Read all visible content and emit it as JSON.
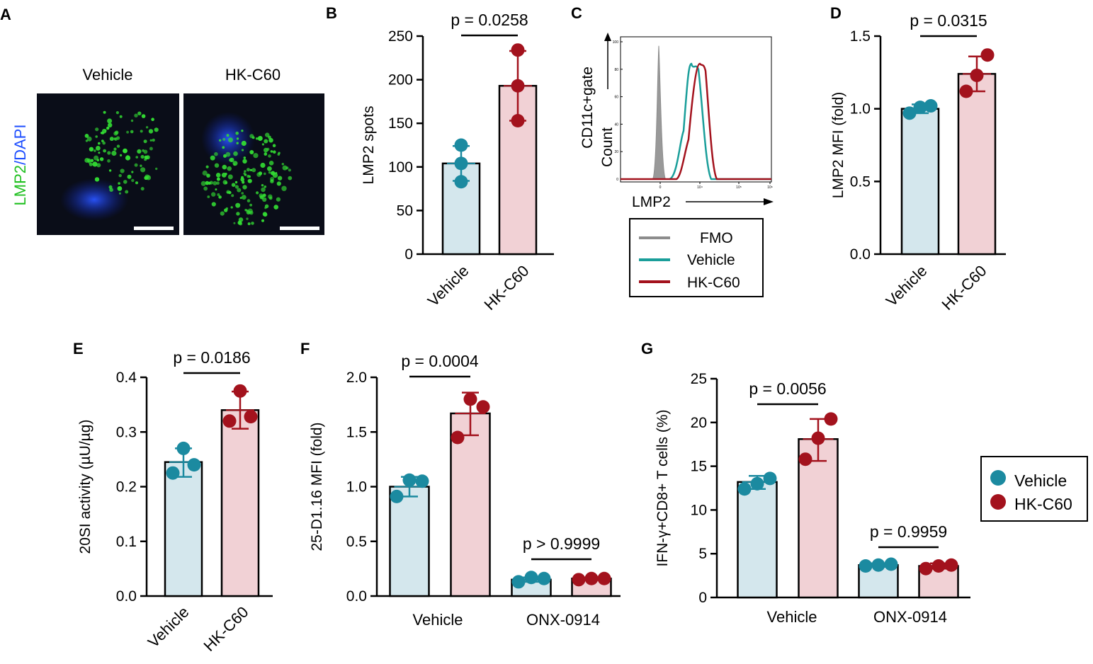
{
  "colors": {
    "vehicle_bar": "#d4e7ed",
    "hkc60_bar": "#f1d1d5",
    "vehicle_point": "#1b8aa0",
    "hkc60_point": "#a3121d",
    "fmo_line": "#8c8c8c",
    "vehicle_line": "#1a9e9a",
    "hkc60_line": "#a3121d",
    "green": "#20c020",
    "blue": "#2050ff"
  },
  "panel_letters": {
    "A": "A",
    "B": "B",
    "C": "C",
    "D": "D",
    "E": "E",
    "F": "F",
    "G": "G"
  },
  "panel_a": {
    "vehicle_label": "Vehicle",
    "hkc60_label": "HK-C60",
    "ylabel_lmp2": "LMP2",
    "ylabel_slash": "/",
    "ylabel_dapi": "DAPI"
  },
  "panel_c": {
    "ylabel_line1": "CD11c+gate",
    "ylabel_line2": "Count",
    "xlabel": "LMP2",
    "yticks": [
      "0",
      "20",
      "40",
      "60",
      "80",
      "100"
    ],
    "xticks": [
      "0",
      "10⁴",
      "10⁵",
      "10⁶"
    ],
    "legend": [
      "FMO",
      "Vehicle",
      "HK-C60"
    ]
  },
  "legend_g": [
    "Vehicle",
    "HK-C60"
  ],
  "chart_data": [
    {
      "panel": "B",
      "type": "bar",
      "categories": [
        "Vehicle",
        "HK-C60"
      ],
      "values": [
        104,
        193
      ],
      "error": [
        [
          84,
          124
        ],
        [
          153,
          233
        ]
      ],
      "points": [
        [
          83,
          104,
          125
        ],
        [
          153,
          193,
          234
        ]
      ],
      "ylabel": "LMP2 spots",
      "xlabel": "",
      "ylim": [
        0,
        250
      ],
      "yticks": [
        "0",
        "50",
        "100",
        "150",
        "200",
        "250"
      ],
      "annotations": [
        {
          "text": "p = 0.0258",
          "between": [
            0,
            1
          ]
        }
      ]
    },
    {
      "panel": "C",
      "type": "line",
      "title": "",
      "xlabel": "LMP2",
      "ylabel": "CD11c+gate Count",
      "ylim": [
        0,
        100
      ],
      "series": [
        {
          "name": "FMO",
          "peak": 97
        },
        {
          "name": "Vehicle",
          "peak": 84
        },
        {
          "name": "HK-C60",
          "peak": 84
        }
      ]
    },
    {
      "panel": "D",
      "type": "bar",
      "categories": [
        "Vehicle",
        "HK-C60"
      ],
      "values": [
        1.0,
        1.24
      ],
      "error": [
        [
          0.97,
          1.03
        ],
        [
          1.12,
          1.36
        ]
      ],
      "points": [
        [
          0.97,
          1.01,
          1.02
        ],
        [
          1.12,
          1.23,
          1.37
        ]
      ],
      "ylabel": "LMP2 MFI (fold)",
      "ylim": [
        0,
        1.5
      ],
      "yticks": [
        "0.0",
        "0.5",
        "1.0",
        "1.5"
      ],
      "annotations": [
        {
          "text": "p = 0.0315",
          "between": [
            0,
            1
          ]
        }
      ]
    },
    {
      "panel": "E",
      "type": "bar",
      "categories": [
        "Vehicle",
        "HK-C60"
      ],
      "values": [
        0.245,
        0.34
      ],
      "error": [
        [
          0.218,
          0.27
        ],
        [
          0.306,
          0.374
        ]
      ],
      "points": [
        [
          0.225,
          0.24,
          0.27
        ],
        [
          0.32,
          0.328,
          0.375
        ]
      ],
      "ylabel": "20SI activity (µU/µg)",
      "ylim": [
        0,
        0.4
      ],
      "yticks": [
        "0.0",
        "0.1",
        "0.2",
        "0.3",
        "0.4"
      ],
      "annotations": [
        {
          "text": "p = 0.0186",
          "between": [
            0,
            1
          ]
        }
      ]
    },
    {
      "panel": "F",
      "type": "bar",
      "groups": [
        "Vehicle",
        "ONX-0914"
      ],
      "series": [
        {
          "name": "Vehicle",
          "values": [
            1.0,
            0.15
          ],
          "error": [
            [
              0.91,
              1.09
            ],
            [
              0.13,
              0.17
            ]
          ],
          "points": [
            [
              0.91,
              1.05,
              1.06
            ],
            [
              0.13,
              0.16,
              0.17
            ]
          ]
        },
        {
          "name": "HK-C60",
          "values": [
            1.67,
            0.16
          ],
          "error": [
            [
              1.47,
              1.86
            ],
            [
              0.15,
              0.17
            ]
          ],
          "points": [
            [
              1.45,
              1.73,
              1.8
            ],
            [
              0.15,
              0.16,
              0.16
            ]
          ]
        }
      ],
      "ylabel": "25-D1.16 MFI (fold)",
      "ylim": [
        0,
        2.0
      ],
      "yticks": [
        "0.0",
        "0.5",
        "1.0",
        "1.5",
        "2.0"
      ],
      "annotations": [
        {
          "text": "p = 0.0004",
          "group": 0
        },
        {
          "text": "p > 0.9999",
          "group": 1
        }
      ]
    },
    {
      "panel": "G",
      "type": "bar",
      "groups": [
        "Vehicle",
        "ONX-0914"
      ],
      "series": [
        {
          "name": "Vehicle",
          "values": [
            13.2,
            3.7
          ],
          "error": [
            [
              12.4,
              13.9
            ],
            [
              3.5,
              3.9
            ]
          ],
          "points": [
            [
              12.4,
              13.0,
              13.6
            ],
            [
              3.6,
              3.7,
              3.8
            ]
          ],
          "legend": "Vehicle"
        },
        {
          "name": "HK-C60",
          "values": [
            18.1,
            3.6
          ],
          "error": [
            [
              15.6,
              20.4
            ],
            [
              3.3,
              3.9
            ]
          ],
          "points": [
            [
              15.8,
              18.2,
              20.4
            ],
            [
              3.3,
              3.6,
              3.7
            ]
          ],
          "legend": "HK-C60"
        }
      ],
      "ylabel": "IFN-γ+CD8+ T cells (%)",
      "ylim": [
        0,
        25
      ],
      "yticks": [
        "0",
        "5",
        "10",
        "15",
        "20",
        "25"
      ],
      "annotations": [
        {
          "text": "p = 0.0056",
          "group": 0
        },
        {
          "text": "p = 0.9959",
          "group": 1
        }
      ]
    }
  ]
}
